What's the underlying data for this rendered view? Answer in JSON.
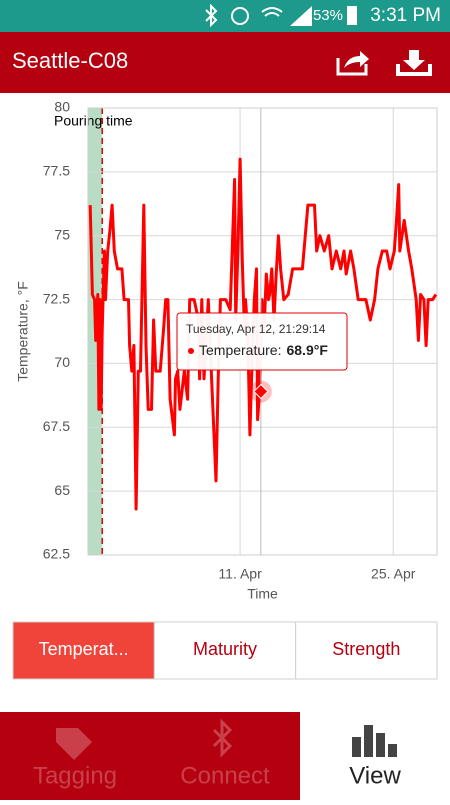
{
  "status_bar": {
    "battery": "53%",
    "time": "3:31 PM"
  },
  "app_bar": {
    "title": "Seattle-C08"
  },
  "chart_data": {
    "type": "line",
    "x_label": "Time",
    "y_label": "Temperature, °F",
    "x": [
      -2.7,
      -2.5,
      -2.3,
      -2.2,
      -2.0,
      -1.9,
      -1.8,
      -1.7,
      -1.6,
      -1.4,
      -1.3,
      -1.1,
      -0.9,
      -0.7,
      -0.5,
      -0.2,
      0.2,
      0.4,
      0.8,
      0.9,
      1.1,
      1.3,
      1.5,
      1.7,
      1.9,
      2.2,
      2.4,
      2.6,
      2.9,
      3.1,
      3.3,
      3.7,
      4.0,
      4.2,
      4.4,
      4.6,
      5.0,
      5.1,
      5.3,
      5.5,
      5.9,
      6.2,
      6.4,
      6.8,
      7.2,
      7.3,
      7.5,
      7.7,
      8.1,
      8.4,
      8.8,
      9.0,
      9.2,
      9.7,
      10.1,
      10.5,
      10.6,
      10.8,
      11.0,
      11.2,
      11.4,
      11.5,
      11.7,
      11.9,
      12.1,
      12.3,
      12.5,
      12.6,
      12.8,
      13.0,
      13.2,
      13.4,
      13.6,
      13.7,
      13.9,
      14.1,
      14.3,
      14.5,
      14.7,
      15.0,
      15.4,
      15.8,
      16.3,
      16.7,
      17.2,
      17.8,
      18.0,
      18.3,
      18.7,
      19.1,
      19.4,
      19.8,
      20.2,
      20.5,
      20.7,
      21.1,
      21.4,
      21.8,
      22.5,
      22.9,
      23.3,
      23.6,
      24.0,
      24.4,
      24.7,
      25.1,
      25.3,
      25.5,
      25.6,
      26.0,
      26.4,
      26.7,
      27.1,
      27.3,
      27.5,
      27.8,
      28.0,
      28.2,
      28.6,
      28.9
    ],
    "series": [
      {
        "color": "#ff0000",
        "values": [
          76.2,
          72.7,
          72.5,
          70.9,
          72.7,
          68.2,
          72.5,
          68.2,
          71.3,
          74.4,
          72.5,
          74.4,
          75.2,
          76.2,
          74.4,
          73.7,
          73.7,
          72.5,
          72.5,
          70.7,
          69.7,
          70.7,
          64.3,
          69.7,
          69.7,
          76.2,
          70.7,
          68.2,
          68.2,
          71.7,
          69.7,
          69.7,
          71.3,
          72.5,
          72.5,
          68.6,
          67.2,
          69.4,
          69.7,
          68.2,
          69.7,
          68.6,
          72.5,
          72.5,
          71.7,
          69.4,
          72.5,
          69.4,
          72.5,
          69.4,
          65.4,
          69.4,
          72.5,
          72.5,
          72.1,
          77.2,
          71.7,
          74.4,
          78.0,
          74.0,
          71.3,
          72.5,
          71.3,
          67.2,
          70.1,
          72.5,
          73.7,
          67.8,
          69.0,
          72.5,
          71.3,
          73.5,
          72.5,
          72.7,
          73.7,
          71.7,
          73.5,
          75.0,
          73.7,
          72.5,
          72.7,
          73.7,
          73.7,
          73.7,
          76.2,
          76.2,
          74.4,
          75.0,
          74.4,
          75.0,
          73.7,
          74.4,
          73.7,
          74.4,
          73.5,
          74.4,
          73.7,
          72.5,
          72.5,
          71.7,
          72.5,
          73.7,
          74.4,
          74.4,
          73.7,
          74.4,
          75.6,
          77.0,
          74.4,
          75.6,
          74.4,
          73.7,
          72.5,
          70.9,
          72.7,
          72.5,
          70.7,
          72.5,
          72.5,
          72.7
        ]
      }
    ],
    "xlim": [
      -2.9,
      29.0
    ],
    "xticks": [
      {
        "value": 11,
        "label": "11. Apr"
      },
      {
        "value": 25,
        "label": "25. Apr"
      }
    ],
    "ylim": [
      62.5,
      80
    ],
    "yticks": [
      62.5,
      65,
      67.5,
      70,
      72.5,
      75,
      77.5,
      80
    ],
    "grid": true,
    "annotations": [
      {
        "text": "Pouring time",
        "x": -1.6
      }
    ],
    "tooltip": {
      "date": "Tuesday, Apr 12, 21:29:14",
      "label": "Temperature:",
      "value": 68.9,
      "value_label": "68.9°F",
      "x": 12.9
    }
  },
  "tabs": [
    "Temperat...",
    "Maturity",
    "Strength"
  ],
  "active_tab": 0,
  "nav": [
    "Tagging",
    "Connect",
    "View"
  ],
  "active_nav": 2
}
